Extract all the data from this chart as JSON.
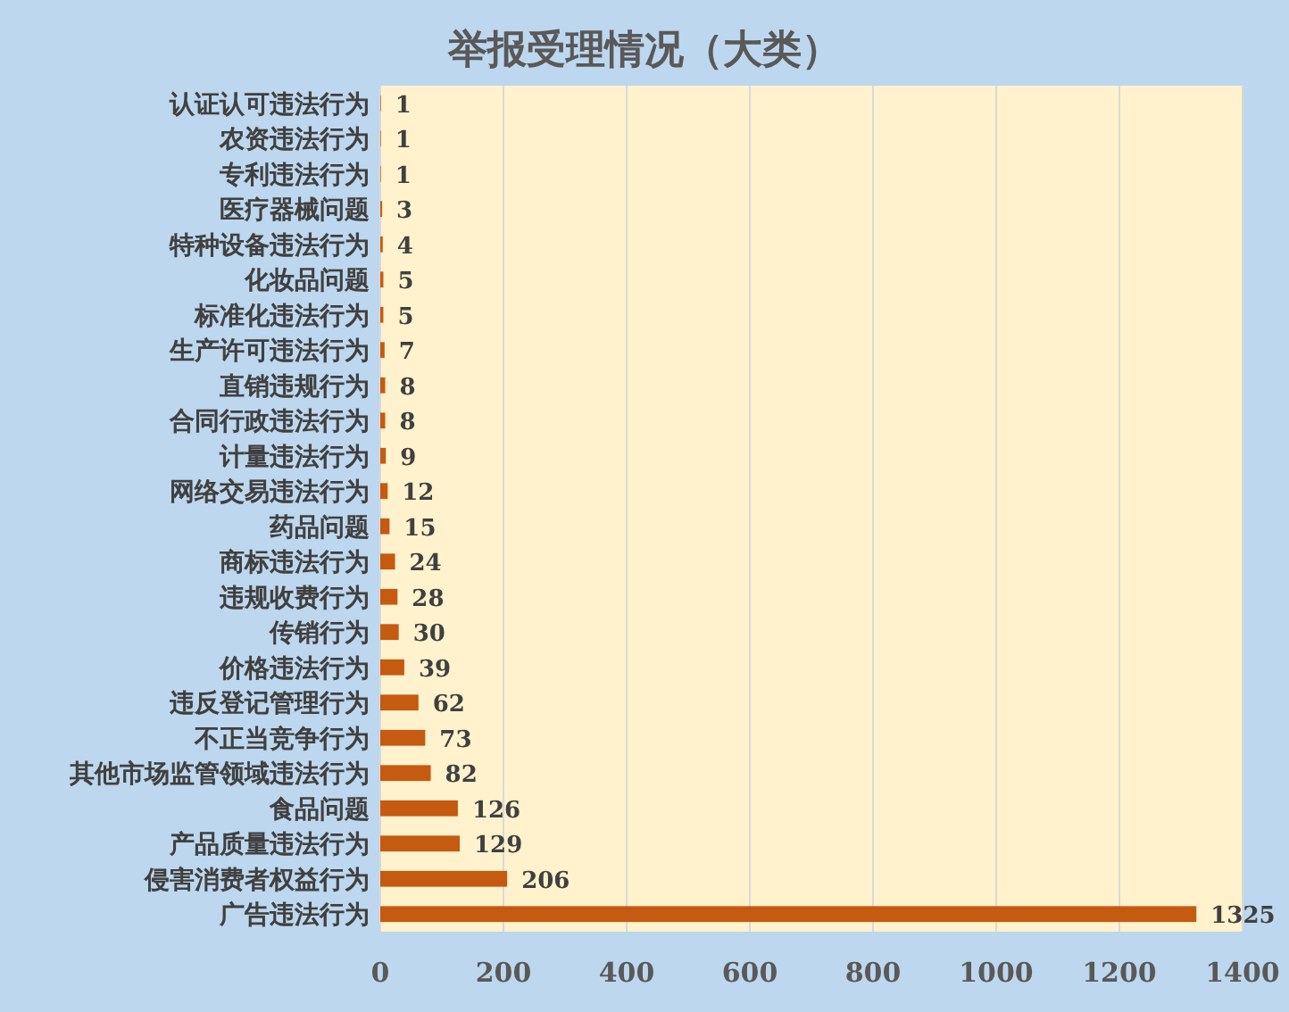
{
  "chart_data": {
    "type": "bar",
    "orientation": "horizontal",
    "title": "举报受理情况（大类）",
    "categories": [
      "认证认可违法行为",
      "农资违法行为",
      "专利违法行为",
      "医疗器械问题",
      "特种设备违法行为",
      "化妆品问题",
      "标准化违法行为",
      "生产许可违法行为",
      "直销违规行为",
      "合同行政违法行为",
      "计量违法行为",
      "网络交易违法行为",
      "药品问题",
      "商标违法行为",
      "违规收费行为",
      "传销行为",
      "价格违法行为",
      "违反登记管理行为",
      "不正当竞争行为",
      "其他市场监管领域违法行为",
      "食品问题",
      "产品质量违法行为",
      "侵害消费者权益行为",
      "广告违法行为"
    ],
    "values": [
      1,
      1,
      1,
      3,
      4,
      5,
      5,
      7,
      8,
      8,
      9,
      12,
      15,
      24,
      28,
      30,
      39,
      62,
      73,
      82,
      126,
      129,
      206,
      1325
    ],
    "color": "#c55a11",
    "xlim": [
      0,
      1400
    ],
    "xticks": [
      0,
      200,
      400,
      600,
      800,
      1000,
      1200,
      1400
    ],
    "grid": "x",
    "data_labels": true
  }
}
